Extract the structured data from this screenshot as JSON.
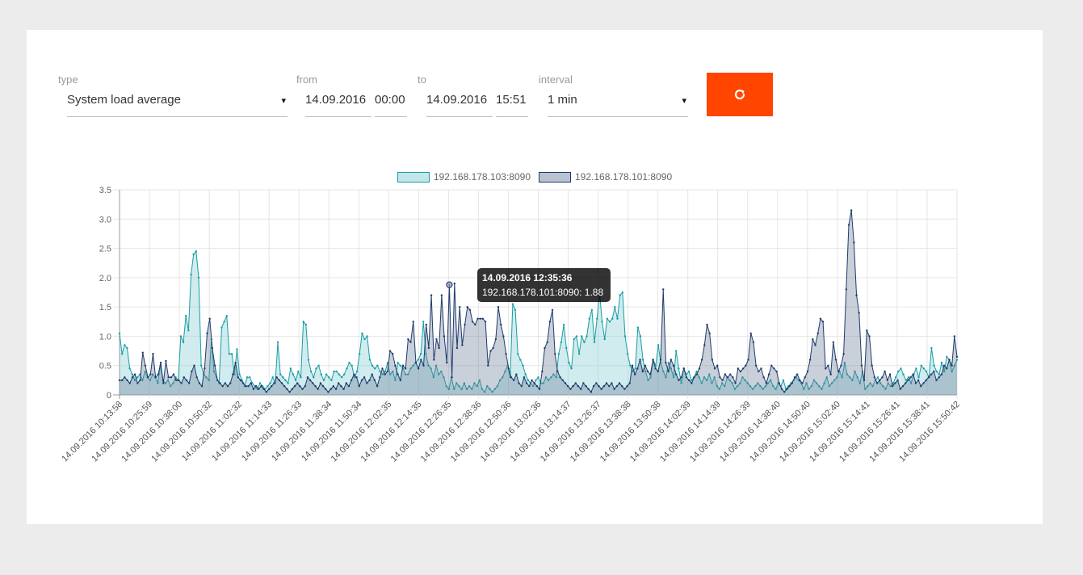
{
  "controls": {
    "type_label": "type",
    "type_value": "System load average",
    "from_label": "from",
    "from_date": "14.09.2016",
    "from_time": "00:00",
    "to_label": "to",
    "to_date": "14.09.2016",
    "to_time": "15:51",
    "interval_label": "interval",
    "interval_value": "1 min",
    "caret": "▾",
    "refresh_icon": "refresh-icon",
    "refresh_color": "#ff4500"
  },
  "tooltip": {
    "title": "14.09.2016 12:35:36",
    "line": "192.168.178.101:8090: 1.88"
  },
  "chart_data": {
    "type": "area",
    "title": "",
    "xlabel": "",
    "ylabel": "",
    "ylim": [
      0,
      3.5
    ],
    "yticks": [
      "0",
      "0.5",
      "1.0",
      "1.5",
      "2.0",
      "2.5",
      "3.0",
      "3.5"
    ],
    "grid": true,
    "legend_position": "top-center",
    "x_tick_labels": [
      "14.09.2016 10:13:58",
      "14.09.2016 10:25:59",
      "14.09.2016 10:38:00",
      "14.09.2016 10:50:32",
      "14.09.2016 11:02:32",
      "14.09.2016 11:14:33",
      "14.09.2016 11:26:33",
      "14.09.2016 11:38:34",
      "14.09.2016 11:50:34",
      "14.09.2016 12:02:35",
      "14.09.2016 12:14:35",
      "14.09.2016 12:26:35",
      "14.09.2016 12:38:36",
      "14.09.2016 12:50:36",
      "14.09.2016 13:02:36",
      "14.09.2016 13:14:37",
      "14.09.2016 13:26:37",
      "14.09.2016 13:38:38",
      "14.09.2016 13:50:38",
      "14.09.2016 14:02:39",
      "14.09.2016 14:14:39",
      "14.09.2016 14:26:39",
      "14.09.2016 14:38:40",
      "14.09.2016 14:50:40",
      "14.09.2016 15:02:40",
      "14.09.2016 15:14:41",
      "14.09.2016 15:26:41",
      "14.09.2016 15:38:41",
      "14.09.2016 15:50:42"
    ],
    "series": [
      {
        "name": "192.168.178.103:8090",
        "color": "#1a9ea3",
        "fill": "rgba(120,200,210,0.35)",
        "values": [
          1.05,
          0.7,
          0.85,
          0.8,
          0.45,
          0.35,
          0.25,
          0.3,
          0.35,
          0.25,
          0.4,
          0.3,
          0.25,
          0.35,
          0.3,
          0.2,
          0.5,
          0.25,
          0.2,
          0.25,
          0.15,
          0.2,
          0.3,
          0.25,
          1.0,
          0.9,
          1.35,
          1.1,
          2.05,
          2.4,
          2.45,
          2.0,
          0.5,
          0.35,
          0.3,
          0.25,
          0.95,
          0.4,
          0.3,
          0.2,
          1.15,
          1.25,
          1.35,
          0.7,
          0.7,
          0.35,
          0.78,
          0.35,
          0.25,
          0.15,
          0.3,
          0.3,
          0.2,
          0.15,
          0.1,
          0.2,
          0.15,
          0.1,
          0.15,
          0.2,
          0.3,
          0.2,
          0.9,
          0.35,
          0.3,
          0.25,
          0.2,
          0.45,
          0.35,
          0.25,
          0.4,
          0.3,
          1.25,
          1.2,
          0.6,
          0.4,
          0.3,
          0.45,
          0.5,
          0.35,
          0.25,
          0.35,
          0.3,
          0.25,
          0.4,
          0.4,
          0.35,
          0.3,
          0.35,
          0.45,
          0.55,
          0.5,
          0.3,
          0.4,
          0.7,
          1.05,
          0.95,
          1.0,
          0.6,
          0.5,
          0.45,
          0.5,
          0.4,
          0.35,
          0.4,
          0.55,
          0.35,
          0.4,
          0.25,
          0.55,
          0.5,
          0.45,
          0.35,
          0.35,
          0.45,
          0.5,
          0.55,
          0.6,
          0.7,
          1.25,
          0.7,
          0.5,
          0.45,
          0.3,
          0.5,
          0.35,
          0.4,
          0.3,
          0.15,
          0.1,
          0.3,
          0.1,
          0.2,
          0.15,
          0.1,
          0.2,
          0.1,
          0.15,
          0.1,
          0.2,
          0.15,
          0.25,
          0.1,
          0.05,
          0.15,
          0.1,
          0.05,
          0.1,
          0.15,
          0.25,
          0.3,
          0.4,
          0.5,
          0.3,
          1.55,
          1.45,
          0.7,
          0.6,
          0.5,
          0.35,
          0.25,
          0.2,
          0.15,
          0.25,
          0.3,
          0.2,
          0.2,
          0.3,
          0.25,
          0.3,
          0.35,
          0.3,
          0.7,
          0.9,
          1.2,
          0.8,
          0.55,
          0.45,
          0.95,
          1.0,
          0.7,
          1.0,
          0.9,
          1.0,
          1.3,
          1.45,
          0.9,
          1.3,
          1.75,
          1.25,
          0.95,
          1.3,
          1.25,
          1.3,
          1.5,
          1.3,
          1.7,
          1.75,
          1.0,
          0.7,
          0.5,
          0.4,
          0.45,
          1.15,
          1.0,
          0.6,
          0.4,
          0.25,
          0.3,
          0.6,
          0.5,
          0.85,
          0.55,
          0.4,
          0.3,
          0.55,
          0.45,
          0.3,
          0.75,
          0.45,
          0.2,
          0.45,
          0.35,
          0.4,
          0.25,
          0.3,
          0.4,
          0.3,
          0.2,
          0.3,
          0.25,
          0.35,
          0.2,
          0.3,
          0.15,
          0.1,
          0.2,
          0.15,
          0.3,
          0.25,
          0.2,
          0.1,
          0.15,
          0.2,
          0.3,
          0.25,
          0.2,
          0.15,
          0.1,
          0.15,
          0.2,
          0.15,
          0.1,
          0.15,
          0.2,
          0.25,
          0.15,
          0.1,
          0.2,
          0.15,
          0.25,
          0.1,
          0.15,
          0.2,
          0.25,
          0.3,
          0.25,
          0.2,
          0.1,
          0.2,
          0.1,
          0.15,
          0.25,
          0.2,
          0.15,
          0.1,
          0.2,
          0.3,
          0.15,
          0.2,
          0.25,
          0.3,
          0.4,
          0.3,
          0.55,
          0.35,
          0.3,
          0.25,
          0.4,
          0.3,
          0.2,
          0.4,
          0.1,
          0.15,
          0.2,
          0.15,
          0.25,
          0.3,
          0.2,
          0.15,
          0.1,
          0.2,
          0.15,
          0.2,
          0.3,
          0.4,
          0.45,
          0.35,
          0.25,
          0.3,
          0.2,
          0.35,
          0.45,
          0.3,
          0.5,
          0.45,
          0.4,
          0.3,
          0.8,
          0.5,
          0.4,
          0.35,
          0.55,
          0.4,
          0.65,
          0.6,
          0.4,
          0.5,
          0.6
        ]
      },
      {
        "name": "192.168.178.101:8090",
        "color": "#1f3b6b",
        "fill": "rgba(100,120,150,0.35)",
        "values": [
          0.25,
          0.25,
          0.3,
          0.25,
          0.2,
          0.3,
          0.35,
          0.2,
          0.25,
          0.72,
          0.5,
          0.3,
          0.35,
          0.7,
          0.3,
          0.35,
          0.55,
          0.2,
          0.58,
          0.3,
          0.3,
          0.35,
          0.25,
          0.25,
          0.2,
          0.3,
          0.25,
          0.2,
          0.4,
          0.5,
          0.3,
          0.2,
          0.15,
          0.45,
          1.05,
          1.3,
          0.8,
          0.5,
          0.25,
          0.2,
          0.15,
          0.2,
          0.15,
          0.2,
          0.35,
          0.55,
          0.3,
          0.25,
          0.2,
          0.15,
          0.15,
          0.2,
          0.1,
          0.15,
          0.1,
          0.15,
          0.1,
          0.05,
          0.1,
          0.15,
          0.2,
          0.3,
          0.25,
          0.2,
          0.15,
          0.1,
          0.05,
          0.1,
          0.15,
          0.2,
          0.15,
          0.1,
          0.15,
          0.3,
          0.25,
          0.2,
          0.15,
          0.1,
          0.2,
          0.15,
          0.1,
          0.05,
          0.1,
          0.15,
          0.1,
          0.2,
          0.15,
          0.1,
          0.2,
          0.15,
          0.25,
          0.35,
          0.3,
          0.15,
          0.25,
          0.3,
          0.2,
          0.25,
          0.35,
          0.25,
          0.15,
          0.3,
          0.45,
          0.35,
          0.4,
          0.75,
          0.7,
          0.5,
          0.35,
          0.25,
          0.5,
          0.45,
          0.95,
          0.9,
          1.25,
          0.55,
          0.45,
          0.6,
          0.5,
          1.2,
          0.8,
          1.7,
          0.6,
          0.95,
          0.8,
          1.7,
          1.0,
          0.55,
          1.88,
          0.3,
          1.9,
          0.8,
          1.5,
          0.85,
          1.2,
          1.5,
          1.45,
          1.25,
          1.2,
          1.3,
          1.3,
          1.3,
          1.25,
          0.5,
          0.75,
          0.8,
          0.95,
          1.5,
          1.2,
          1.0,
          0.7,
          0.45,
          0.3,
          0.25,
          0.35,
          0.2,
          0.15,
          0.3,
          0.2,
          0.15,
          0.25,
          0.2,
          0.15,
          0.1,
          0.4,
          0.8,
          0.9,
          1.25,
          1.45,
          0.7,
          0.4,
          0.3,
          0.25,
          0.2,
          0.15,
          0.1,
          0.15,
          0.2,
          0.15,
          0.1,
          0.2,
          0.15,
          0.1,
          0.05,
          0.15,
          0.2,
          0.15,
          0.1,
          0.15,
          0.2,
          0.15,
          0.2,
          0.1,
          0.15,
          0.2,
          0.15,
          0.1,
          0.15,
          0.2,
          0.5,
          0.35,
          0.45,
          0.6,
          0.4,
          0.5,
          0.4,
          0.35,
          0.6,
          0.45,
          0.4,
          0.6,
          1.8,
          0.55,
          0.4,
          0.6,
          0.5,
          0.35,
          0.25,
          0.3,
          0.45,
          0.3,
          0.25,
          0.2,
          0.3,
          0.35,
          0.45,
          0.6,
          0.85,
          1.2,
          1.05,
          0.6,
          0.45,
          0.5,
          0.3,
          0.25,
          0.35,
          0.3,
          0.35,
          0.3,
          0.2,
          0.45,
          0.4,
          0.45,
          0.5,
          0.6,
          1.05,
          0.9,
          0.5,
          0.4,
          0.45,
          0.3,
          0.2,
          0.35,
          0.5,
          0.45,
          0.4,
          0.2,
          0.1,
          0.05,
          0.1,
          0.15,
          0.2,
          0.3,
          0.35,
          0.25,
          0.2,
          0.3,
          0.4,
          0.6,
          0.95,
          0.85,
          1.05,
          1.3,
          1.25,
          0.45,
          0.5,
          0.35,
          0.9,
          0.6,
          0.4,
          0.5,
          0.7,
          1.8,
          2.9,
          3.15,
          2.6,
          1.7,
          1.4,
          0.5,
          0.25,
          1.1,
          1.0,
          0.5,
          0.3,
          0.2,
          0.25,
          0.3,
          0.4,
          0.25,
          0.35,
          0.15,
          0.2,
          0.25,
          0.1,
          0.15,
          0.2,
          0.25,
          0.3,
          0.35,
          0.2,
          0.25,
          0.15,
          0.2,
          0.25,
          0.3,
          0.35,
          0.4,
          0.25,
          0.3,
          0.35,
          0.5,
          0.45,
          0.6,
          0.5,
          1.0,
          0.65
        ]
      }
    ],
    "highlight": {
      "series": 1,
      "x": "14.09.2016 12:35:36",
      "y": 1.88
    }
  }
}
